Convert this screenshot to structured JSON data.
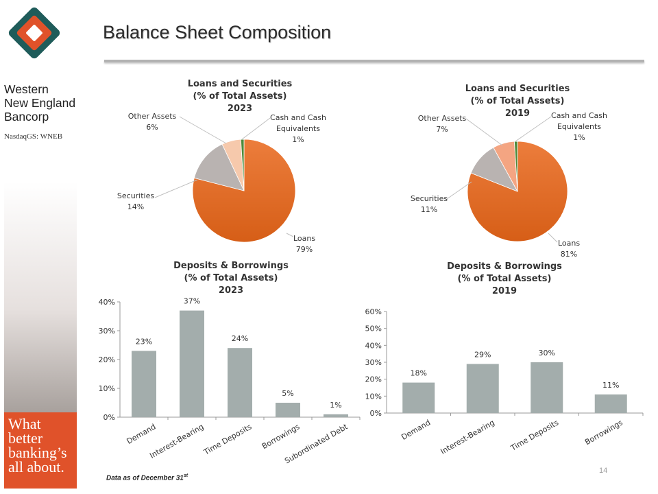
{
  "page": {
    "title": "Balance Sheet Composition",
    "footnote_main": "Data as of December 31",
    "footnote_sup": "st",
    "page_number": "14"
  },
  "brand": {
    "name_line1": "Western",
    "name_line2": "New England",
    "name_line3": "Bancorp",
    "ticker": "NasdaqGS: WNEB",
    "tagline": [
      "What",
      "better",
      "banking’s",
      "all about."
    ],
    "colors": {
      "teal": "#1f5c5a",
      "orange": "#e0522a",
      "logo_white": "#ffffff"
    }
  },
  "chart_data": [
    {
      "type": "pie",
      "title": [
        "Loans and Securities",
        "(% of Total Assets)",
        "2023"
      ],
      "slices": [
        {
          "label": "Loans",
          "value": 79,
          "value_label": "79%",
          "color": "#e8702d"
        },
        {
          "label": "Securities",
          "value": 14,
          "value_label": "14%",
          "color": "#b9b3b1"
        },
        {
          "label": "Other Assets",
          "value": 6,
          "value_label": "6%",
          "color": "#f6c9ac"
        },
        {
          "label": "Cash and Cash Equivalents",
          "label_lines": [
            "Cash and Cash",
            "Equivalents"
          ],
          "value": 1,
          "value_label": "1%",
          "color": "#4e8a3b"
        }
      ]
    },
    {
      "type": "pie",
      "title": [
        "Loans and Securities",
        "(% of Total Assets)",
        "2019"
      ],
      "slices": [
        {
          "label": "Loans",
          "value": 81,
          "value_label": "81%",
          "color": "#e8702d"
        },
        {
          "label": "Securities",
          "value": 11,
          "value_label": "11%",
          "color": "#b9b3b1"
        },
        {
          "label": "Other Assets",
          "value": 7,
          "value_label": "7%",
          "color": "#f4a582"
        },
        {
          "label": "Cash and Cash Equivalents",
          "label_lines": [
            "Cash and Cash",
            "Equivalents"
          ],
          "value": 1,
          "value_label": "1%",
          "color": "#4e8a3b"
        }
      ]
    },
    {
      "type": "bar",
      "title": [
        "Deposits & Borrowings",
        "(% of Total Assets)",
        "2023"
      ],
      "categories": [
        "Demand",
        "Interest-Bearing",
        "Time Deposits",
        "Borrowings",
        "Subordinated Debt"
      ],
      "values": [
        23,
        37,
        24,
        5,
        1
      ],
      "value_labels": [
        "23%",
        "37%",
        "24%",
        "5%",
        "1%"
      ],
      "ylim": [
        0,
        40
      ],
      "yticks": [
        0,
        10,
        20,
        30,
        40
      ],
      "ytick_labels": [
        "0%",
        "10%",
        "20%",
        "30%",
        "40%"
      ],
      "bar_color": "#a3adac"
    },
    {
      "type": "bar",
      "title": [
        "Deposits & Borrowings",
        "(% of Total Assets)",
        "2019"
      ],
      "categories": [
        "Demand",
        "Interest-Bearing",
        "Time Deposits",
        "Borrowings"
      ],
      "values": [
        18,
        29,
        30,
        11
      ],
      "value_labels": [
        "18%",
        "29%",
        "30%",
        "11%"
      ],
      "ylim": [
        0,
        60
      ],
      "yticks": [
        0,
        10,
        20,
        30,
        40,
        50,
        60
      ],
      "ytick_labels": [
        "0%",
        "10%",
        "20%",
        "30%",
        "40%",
        "50%",
        "60%"
      ],
      "bar_color": "#a3adac"
    }
  ]
}
